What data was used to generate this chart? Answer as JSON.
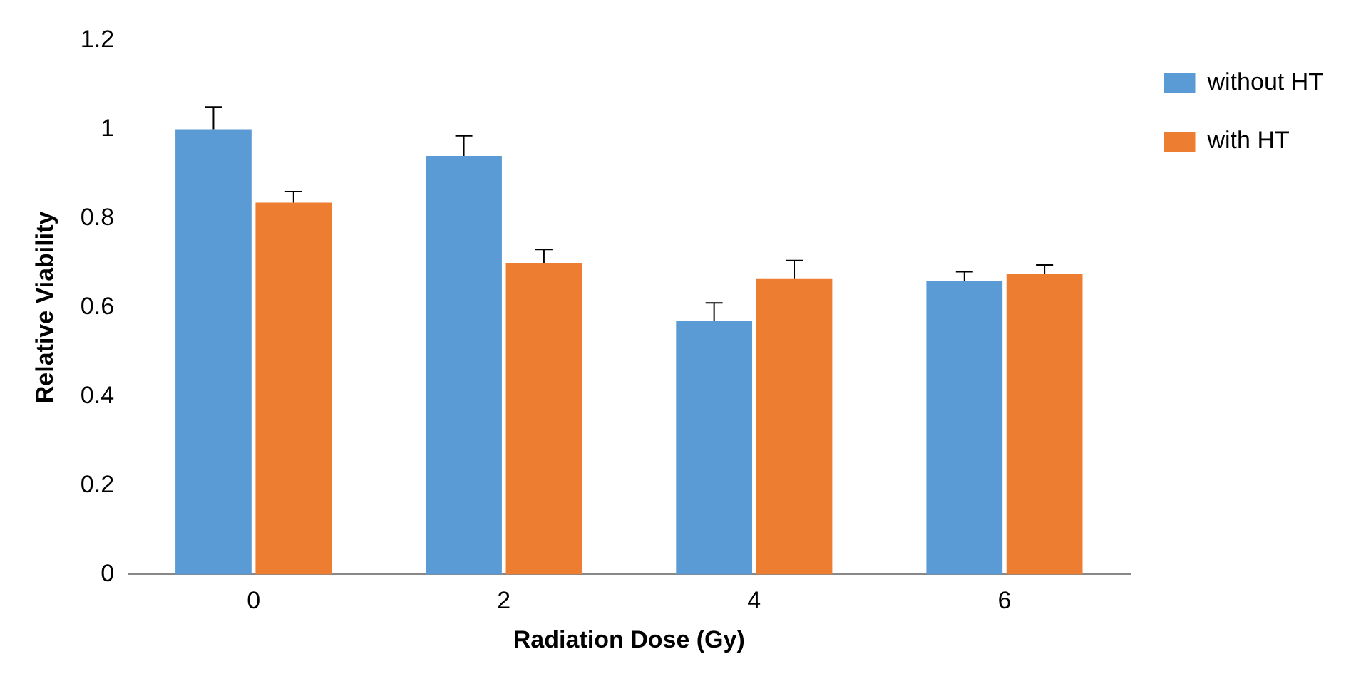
{
  "chart_data": {
    "type": "bar",
    "xlabel": "Radiation Dose (Gy)",
    "ylabel": "Relative Viability",
    "categories": [
      "0",
      "2",
      "4",
      "6"
    ],
    "series": [
      {
        "name": "without HT",
        "color": "#5b9bd5",
        "values": [
          1.0,
          0.94,
          0.57,
          0.66
        ],
        "errors": [
          0.05,
          0.045,
          0.04,
          0.02
        ]
      },
      {
        "name": "with HT",
        "color": "#ed7d31",
        "values": [
          0.835,
          0.7,
          0.665,
          0.675
        ],
        "errors": [
          0.025,
          0.03,
          0.04,
          0.02
        ]
      }
    ],
    "ylim": [
      0,
      1.2
    ],
    "yticks": [
      0,
      0.2,
      0.4,
      0.6,
      0.8,
      1,
      1.2
    ],
    "grid": false,
    "legend": "top right"
  }
}
